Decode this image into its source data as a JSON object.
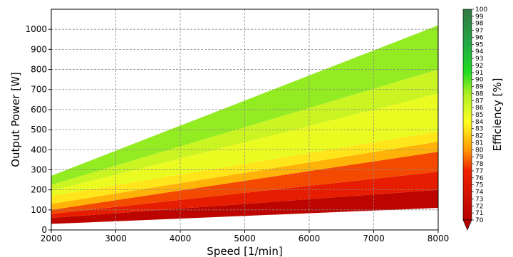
{
  "chart_data": {
    "type": "heatmap",
    "title": "",
    "xlabel": "Speed [1/min]",
    "ylabel": "Output Power [W]",
    "xlim": [
      2000,
      8000
    ],
    "ylim": [
      0,
      1100
    ],
    "x_ticks": [
      2000,
      3000,
      4000,
      5000,
      6000,
      7000,
      8000
    ],
    "y_ticks": [
      0,
      100,
      200,
      300,
      400,
      500,
      600,
      700,
      800,
      900,
      1000
    ],
    "grid": true,
    "colorbar": {
      "label": "Efficiency [%]",
      "min": 70,
      "max": 100,
      "ticks": [
        70,
        71,
        72,
        73,
        74,
        75,
        76,
        77,
        78,
        79,
        80,
        81,
        82,
        83,
        84,
        85,
        86,
        87,
        88,
        89,
        90,
        91,
        92,
        93,
        94,
        95,
        96,
        97,
        98,
        99,
        100
      ],
      "extend": "min",
      "color_stops": [
        {
          "value": 70,
          "color": "#b40000"
        },
        {
          "value": 77,
          "color": "#ee2200"
        },
        {
          "value": 80,
          "color": "#ff9900"
        },
        {
          "value": 84,
          "color": "#ffff22"
        },
        {
          "value": 88,
          "color": "#aaee22"
        },
        {
          "value": 91,
          "color": "#22dd22"
        },
        {
          "value": 95,
          "color": "#22aa44"
        },
        {
          "value": 100,
          "color": "#337744"
        }
      ]
    },
    "region": {
      "lower_boundary": [
        {
          "x": 2000,
          "y": 30
        },
        {
          "x": 8000,
          "y": 110
        }
      ],
      "upper_boundary": [
        {
          "x": 2000,
          "y": 270
        },
        {
          "x": 8000,
          "y": 1020
        }
      ]
    },
    "efficiency_bands": [
      {
        "lower_at_2000": 0,
        "lower_at_8000": 0,
        "upper_at_2000": 60,
        "upper_at_8000": 200,
        "efficiency": 71
      },
      {
        "lower_at_2000": 60,
        "lower_at_8000": 200,
        "upper_at_2000": 80,
        "upper_at_8000": 290,
        "efficiency": 76
      },
      {
        "lower_at_2000": 80,
        "lower_at_8000": 290,
        "upper_at_2000": 100,
        "upper_at_8000": 390,
        "efficiency": 78
      },
      {
        "lower_at_2000": 100,
        "lower_at_8000": 390,
        "upper_at_2000": 130,
        "upper_at_8000": 440,
        "efficiency": 81
      },
      {
        "lower_at_2000": 130,
        "lower_at_8000": 440,
        "upper_at_2000": 170,
        "upper_at_8000": 490,
        "efficiency": 83
      },
      {
        "lower_at_2000": 170,
        "lower_at_8000": 490,
        "upper_at_2000": 195,
        "upper_at_8000": 680,
        "efficiency": 85
      },
      {
        "lower_at_2000": 195,
        "lower_at_8000": 680,
        "upper_at_2000": 225,
        "upper_at_8000": 800,
        "efficiency": 86.5
      },
      {
        "lower_at_2000": 225,
        "lower_at_8000": 800,
        "upper_at_2000": 1100,
        "upper_at_8000": 1100,
        "efficiency": 88.5
      }
    ]
  }
}
